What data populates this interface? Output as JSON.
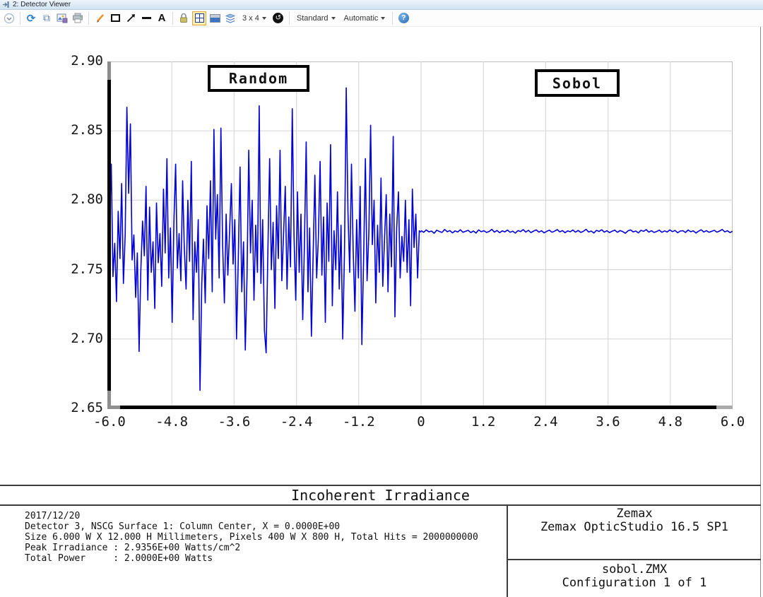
{
  "window": {
    "title": "2: Detector Viewer"
  },
  "toolbar": {
    "grid_size_label": "3 x 4",
    "style_dropdown_label": "Standard",
    "scale_dropdown_label": "Automatic",
    "icons": {
      "refresh": "⟳",
      "copy": "⧉",
      "text_tool": "A",
      "reset": "↺",
      "help": "?"
    }
  },
  "annotations": [
    {
      "label": "Random"
    },
    {
      "label": "Sobol"
    }
  ],
  "chart_data": {
    "type": "line",
    "title": "Incoherent Irradiance",
    "xlabel": "",
    "ylabel": "",
    "xlim": [
      -6.0,
      6.0
    ],
    "ylim": [
      2.65,
      2.9
    ],
    "grid": true,
    "grid_color": "#d9d9d9",
    "line_color": "#0000d9",
    "legend": "none",
    "x_ticks": [
      -6.0,
      -4.8,
      -3.6,
      -2.4,
      -1.2,
      0,
      1.2,
      2.4,
      3.6,
      4.8,
      6.0
    ],
    "x_tick_labels": [
      "-6.0",
      "-4.8",
      "-3.6",
      "-2.4",
      "-1.2",
      "0",
      "1.2",
      "2.4",
      "3.6",
      "4.8",
      "6.0"
    ],
    "y_ticks": [
      2.65,
      2.7,
      2.75,
      2.8,
      2.85,
      2.9
    ],
    "y_tick_labels": [
      "2.65",
      "2.70",
      "2.75",
      "2.80",
      "2.85",
      "2.90"
    ],
    "series": [
      {
        "name": "Random",
        "x_start": -6.0,
        "x_end": 0.0,
        "values": [
          2.783,
          2.826,
          2.745,
          2.769,
          2.727,
          2.792,
          2.758,
          2.812,
          2.74,
          2.775,
          2.867,
          2.805,
          2.855,
          2.757,
          2.775,
          2.73,
          2.762,
          2.691,
          2.749,
          2.785,
          2.76,
          2.81,
          2.728,
          2.795,
          2.748,
          2.77,
          2.722,
          2.798,
          2.755,
          2.776,
          2.738,
          2.808,
          2.762,
          2.83,
          2.744,
          2.78,
          2.712,
          2.785,
          2.826,
          2.751,
          2.776,
          2.742,
          2.814,
          2.765,
          2.736,
          2.8,
          2.756,
          2.828,
          2.714,
          2.77,
          2.748,
          2.786,
          2.663,
          2.74,
          2.772,
          2.726,
          2.796,
          2.758,
          2.814,
          2.734,
          2.851,
          2.772,
          2.804,
          2.744,
          2.852,
          2.768,
          2.726,
          2.79,
          2.746,
          2.778,
          2.812,
          2.754,
          2.786,
          2.7,
          2.758,
          2.824,
          2.734,
          2.77,
          2.692,
          2.744,
          2.836,
          2.762,
          2.8,
          2.728,
          2.782,
          2.748,
          2.868,
          2.74,
          2.786,
          2.706,
          2.69,
          2.764,
          2.83,
          2.75,
          2.784,
          2.722,
          2.796,
          2.758,
          2.836,
          2.742,
          2.776,
          2.81,
          2.736,
          2.788,
          2.752,
          2.866,
          2.774,
          2.728,
          2.806,
          2.748,
          2.79,
          2.714,
          2.768,
          2.842,
          2.734,
          2.78,
          2.702,
          2.762,
          2.818,
          2.744,
          2.772,
          2.828,
          2.746,
          2.788,
          2.712,
          2.798,
          2.756,
          2.84,
          2.724,
          2.778,
          2.75,
          2.806,
          2.736,
          2.782,
          2.7,
          2.762,
          2.881,
          2.792,
          2.748,
          2.826,
          2.764,
          2.72,
          2.786,
          2.744,
          2.81,
          2.696,
          2.758,
          2.83,
          2.742,
          2.776,
          2.854,
          2.768,
          2.8,
          2.726,
          2.782,
          2.748,
          2.816,
          2.738,
          2.772,
          2.804,
          2.734,
          2.79,
          2.752,
          2.846,
          2.716,
          2.78,
          2.806,
          2.744,
          2.774,
          2.756,
          2.8,
          2.748,
          2.786,
          2.724,
          2.808,
          2.766,
          2.79,
          2.744,
          2.778,
          2.777
        ]
      },
      {
        "name": "Sobol",
        "x_start": 0.0,
        "x_end": 6.0,
        "values": [
          2.7781,
          2.7769,
          2.7786,
          2.7772,
          2.7778,
          2.7762,
          2.7784,
          2.7775,
          2.7768,
          2.7789,
          2.7773,
          2.7781,
          2.7765,
          2.7779,
          2.7771,
          2.7787,
          2.7769,
          2.7776,
          2.7783,
          2.7767,
          2.7778,
          2.7764,
          2.7786,
          2.7773,
          2.778,
          2.7768,
          2.7775,
          2.779,
          2.777,
          2.7782,
          2.7766,
          2.7779,
          2.7772,
          2.7785,
          2.7769,
          2.7777,
          2.7763,
          2.7781,
          2.7774,
          2.7788,
          2.7771,
          2.7783,
          2.7767,
          2.7778,
          2.7786,
          2.777,
          2.778,
          2.7765,
          2.7776,
          2.7784,
          2.7769,
          2.7777,
          2.7788,
          2.7772,
          2.7781,
          2.7766,
          2.7779,
          2.7773,
          2.7785,
          2.777,
          2.7782,
          2.7768,
          2.7776,
          2.779,
          2.7771,
          2.7778,
          2.7764,
          2.7783,
          2.7775,
          2.7787,
          2.777,
          2.778,
          2.7767,
          2.7777,
          2.7784,
          2.7769,
          2.7781,
          2.7774,
          2.7762,
          2.7779,
          2.7786,
          2.7772,
          2.7778,
          2.7765,
          2.7783,
          2.7776,
          2.7788,
          2.777,
          2.778,
          2.7768,
          2.7775,
          2.7784,
          2.7769,
          2.7779,
          2.7771,
          2.7786,
          2.7774,
          2.7782,
          2.7766,
          2.7778,
          2.778,
          2.7768,
          2.7785,
          2.7773,
          2.7779,
          2.7764,
          2.7777,
          2.7787,
          2.7771,
          2.7781,
          2.7769,
          2.7776,
          2.7783,
          2.777,
          2.7778,
          2.7789,
          2.7772,
          2.778,
          2.7767,
          2.7777
        ]
      }
    ]
  },
  "footer": {
    "title": "Incoherent Irradiance",
    "info_lines": [
      "2017/12/20",
      "Detector 3, NSCG Surface 1: Column Center, X = 0.0000E+00",
      "Size 6.000 W X 12.000 H Millimeters, Pixels 400 W X 800 H, Total Hits = 2000000000",
      "Peak Irradiance : 2.9356E+00 Watts/cm^2",
      "Total Power     : 2.0000E+00 Watts"
    ],
    "brand_line1": "Zemax",
    "brand_line2": "Zemax OpticStudio 16.5 SP1",
    "file_line1": "sobol.ZMX",
    "file_line2": "Configuration 1 of 1"
  }
}
